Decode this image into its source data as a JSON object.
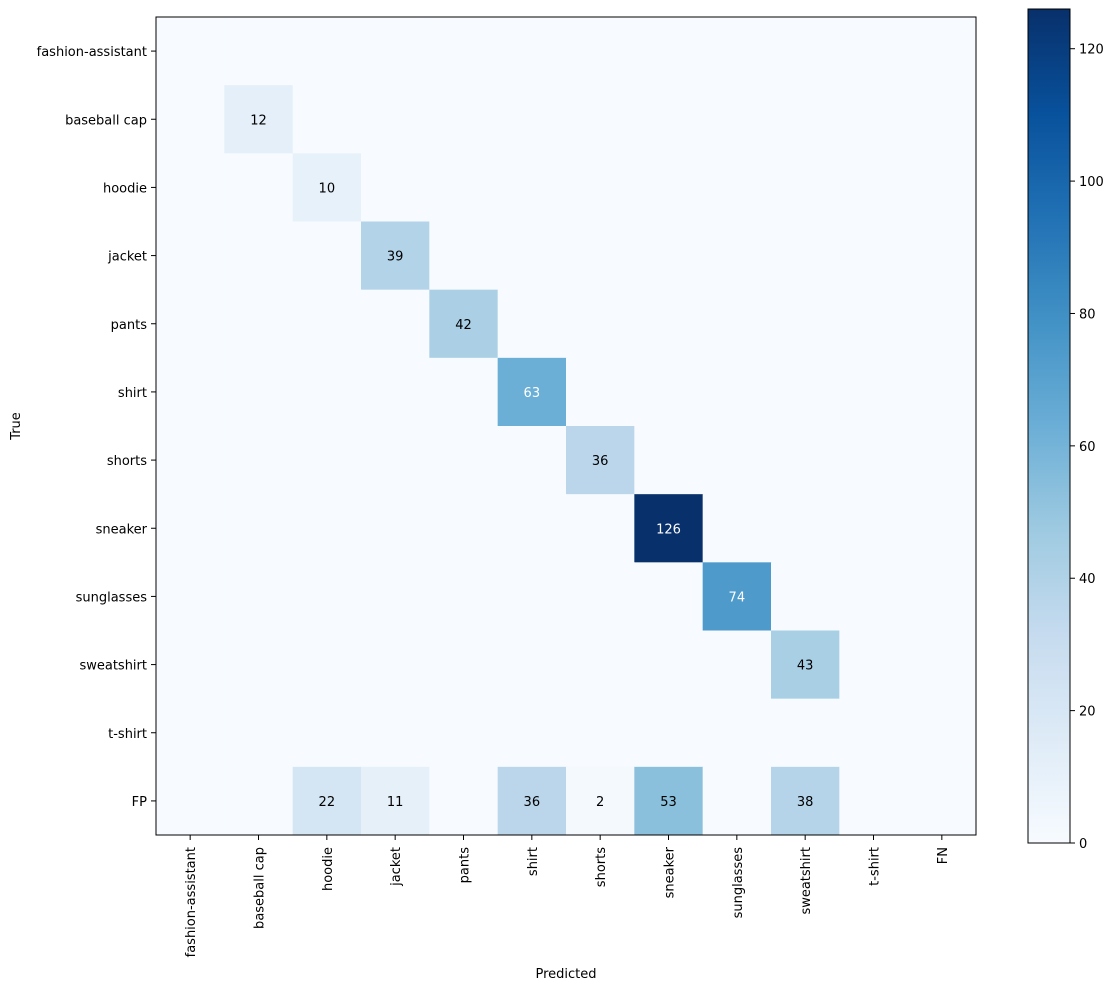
{
  "chart_data": {
    "type": "heatmap",
    "title": "",
    "xlabel": "Predicted",
    "ylabel": "True",
    "x_categories": [
      "fashion-assistant",
      "baseball cap",
      "hoodie",
      "jacket",
      "pants",
      "shirt",
      "shorts",
      "sneaker",
      "sunglasses",
      "sweatshirt",
      "t-shirt",
      "FN"
    ],
    "y_categories": [
      "fashion-assistant",
      "baseball cap",
      "hoodie",
      "jacket",
      "pants",
      "shirt",
      "shorts",
      "sneaker",
      "sunglasses",
      "sweatshirt",
      "t-shirt",
      "FP"
    ],
    "values": [
      [
        0,
        0,
        0,
        0,
        0,
        0,
        0,
        0,
        0,
        0,
        0,
        0
      ],
      [
        0,
        12,
        0,
        0,
        0,
        0,
        0,
        0,
        0,
        0,
        0,
        0
      ],
      [
        0,
        0,
        10,
        0,
        0,
        0,
        0,
        0,
        0,
        0,
        0,
        0
      ],
      [
        0,
        0,
        0,
        39,
        0,
        0,
        0,
        0,
        0,
        0,
        0,
        0
      ],
      [
        0,
        0,
        0,
        0,
        42,
        0,
        0,
        0,
        0,
        0,
        0,
        0
      ],
      [
        0,
        0,
        0,
        0,
        0,
        63,
        0,
        0,
        0,
        0,
        0,
        0
      ],
      [
        0,
        0,
        0,
        0,
        0,
        0,
        36,
        0,
        0,
        0,
        0,
        0
      ],
      [
        0,
        0,
        0,
        0,
        0,
        0,
        0,
        126,
        0,
        0,
        0,
        0
      ],
      [
        0,
        0,
        0,
        0,
        0,
        0,
        0,
        0,
        74,
        0,
        0,
        0
      ],
      [
        0,
        0,
        0,
        0,
        0,
        0,
        0,
        0,
        0,
        43,
        0,
        0
      ],
      [
        0,
        0,
        0,
        0,
        0,
        0,
        0,
        0,
        0,
        0,
        0,
        0
      ],
      [
        0,
        0,
        22,
        11,
        0,
        36,
        2,
        53,
        0,
        38,
        0,
        0
      ]
    ],
    "show_zero_labels": false,
    "colormap": "Blues",
    "vmin": 0,
    "vmax": 126,
    "colorbar_ticks": [
      0,
      20,
      40,
      60,
      80,
      100,
      120
    ],
    "grid": false
  }
}
